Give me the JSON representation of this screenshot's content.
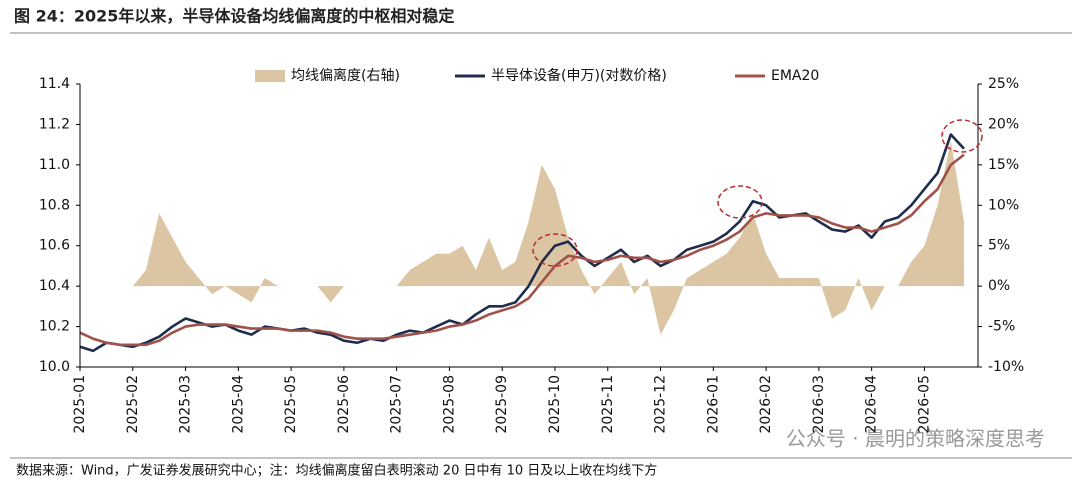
{
  "chart_data": {
    "type": "combo",
    "title": "图 24：2025年以来，半导体设备均线偏离度的中枢相对稳定",
    "source": "数据来源：Wind，广发证券发展研究中心；注：均线偏离度留白表明滚动 20 日中有 10 日及以上收在均线下方",
    "watermark": "公众号 · 晨明的策略深度思考",
    "categories": [
      "2025-01",
      null,
      null,
      null,
      "2025-02",
      null,
      null,
      null,
      "2025-03",
      null,
      null,
      null,
      "2025-04",
      null,
      null,
      null,
      "2025-05",
      null,
      null,
      null,
      "2025-06",
      null,
      null,
      null,
      "2025-07",
      null,
      null,
      null,
      "2025-08",
      null,
      null,
      null,
      "2025-09",
      null,
      null,
      null,
      "2025-10",
      null,
      null,
      null,
      "2025-11",
      null,
      null,
      null,
      "2025-12",
      null,
      null,
      null,
      "2026-01",
      null,
      null,
      null,
      "2026-02",
      null,
      null,
      null,
      "2026-03",
      null,
      null,
      null,
      "2026-04",
      null,
      null,
      null,
      "2026-05",
      null,
      null,
      null
    ],
    "series": [
      {
        "name": "均线偏离度(右轴)",
        "type": "area",
        "axis": "y2",
        "color": "#dcc5a3",
        "values": [
          0,
          0,
          0,
          0,
          0,
          2,
          9,
          6,
          3,
          1,
          -1,
          0,
          -1,
          -2,
          1,
          0,
          0,
          0,
          0,
          -2,
          0,
          0,
          0,
          0,
          0,
          2,
          3,
          4,
          4,
          5,
          2,
          6,
          2,
          3,
          8,
          15,
          12,
          6,
          2,
          -1,
          1,
          3,
          -1,
          1,
          -6,
          -3,
          1,
          2,
          3,
          4,
          6,
          9,
          4,
          1,
          1,
          1,
          1,
          -4,
          -3,
          1,
          -3,
          0,
          0,
          3,
          5,
          10,
          18,
          8
        ]
      },
      {
        "name": "半导体设备(申万)(对数价格)",
        "type": "line",
        "color": "#1f2d4d",
        "values": [
          10.1,
          10.08,
          10.12,
          10.11,
          10.1,
          10.12,
          10.15,
          10.2,
          10.24,
          10.22,
          10.2,
          10.21,
          10.18,
          10.16,
          10.2,
          10.19,
          10.18,
          10.19,
          10.17,
          10.16,
          10.13,
          10.12,
          10.14,
          10.13,
          10.16,
          10.18,
          10.17,
          10.2,
          10.23,
          10.21,
          10.26,
          10.3,
          10.3,
          10.32,
          10.4,
          10.52,
          10.6,
          10.62,
          10.55,
          10.5,
          10.54,
          10.58,
          10.52,
          10.55,
          10.5,
          10.53,
          10.58,
          10.6,
          10.62,
          10.66,
          10.72,
          10.82,
          10.8,
          10.74,
          10.75,
          10.76,
          10.72,
          10.68,
          10.67,
          10.7,
          10.64,
          10.72,
          10.74,
          10.8,
          10.88,
          10.96,
          11.15,
          11.08
        ]
      },
      {
        "name": "EMA20",
        "type": "line",
        "color": "#a0524a",
        "values": [
          10.17,
          10.14,
          10.12,
          10.11,
          10.11,
          10.11,
          10.13,
          10.17,
          10.2,
          10.21,
          10.21,
          10.21,
          10.2,
          10.19,
          10.19,
          10.19,
          10.18,
          10.18,
          10.18,
          10.17,
          10.15,
          10.14,
          10.14,
          10.14,
          10.15,
          10.16,
          10.17,
          10.18,
          10.2,
          10.21,
          10.23,
          10.26,
          10.28,
          10.3,
          10.34,
          10.42,
          10.5,
          10.55,
          10.54,
          10.52,
          10.53,
          10.55,
          10.54,
          10.54,
          10.52,
          10.53,
          10.55,
          10.58,
          10.6,
          10.63,
          10.67,
          10.74,
          10.76,
          10.75,
          10.75,
          10.75,
          10.74,
          10.71,
          10.69,
          10.69,
          10.67,
          10.69,
          10.71,
          10.75,
          10.82,
          10.88,
          11.0,
          11.05
        ]
      }
    ],
    "ylim": [
      10.0,
      11.4
    ],
    "yticks": [
      {
        "value": 10,
        "label": "10.0"
      },
      10.2,
      10.4,
      10.6,
      10.8,
      {
        "value": 11,
        "label": "11.0"
      },
      11.2,
      11.4
    ],
    "y2lim": [
      -10,
      25
    ],
    "y2ticks": [
      {
        "value": -10,
        "label": "-10%"
      },
      {
        "value": -5,
        "label": "-5%"
      },
      {
        "value": 0,
        "label": "0%"
      },
      {
        "value": 5,
        "label": "5%"
      },
      {
        "value": 10,
        "label": "10%"
      },
      {
        "value": 15,
        "label": "15%"
      },
      {
        "value": 20,
        "label": "20%"
      },
      {
        "value": 25,
        "label": "25%"
      }
    ],
    "legend": "top"
  }
}
